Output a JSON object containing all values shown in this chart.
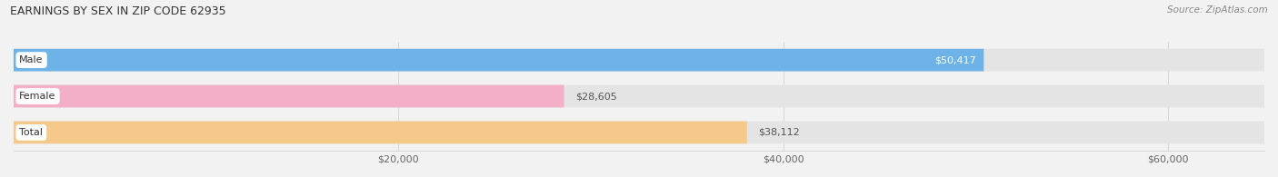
{
  "title": "EARNINGS BY SEX IN ZIP CODE 62935",
  "source": "Source: ZipAtlas.com",
  "categories": [
    "Male",
    "Female",
    "Total"
  ],
  "values": [
    50417,
    28605,
    38112
  ],
  "bar_colors": [
    "#6db3e8",
    "#f4afc8",
    "#f5c98a"
  ],
  "value_labels": [
    "$50,417",
    "$28,605",
    "$38,112"
  ],
  "value_inside": [
    true,
    false,
    false
  ],
  "xmin": 0,
  "xmax": 65000,
  "xaxis_min": 0,
  "xaxis_max": 60000,
  "xticks": [
    20000,
    40000,
    60000
  ],
  "xtick_labels": [
    "$20,000",
    "$40,000",
    "$60,000"
  ],
  "figsize": [
    14.06,
    1.95
  ],
  "dpi": 100,
  "bg_color": "#f2f2f2",
  "bar_bg_color": "#e4e4e4",
  "title_fontsize": 9,
  "source_fontsize": 7.5,
  "label_fontsize": 8,
  "value_fontsize": 8,
  "tick_fontsize": 8
}
